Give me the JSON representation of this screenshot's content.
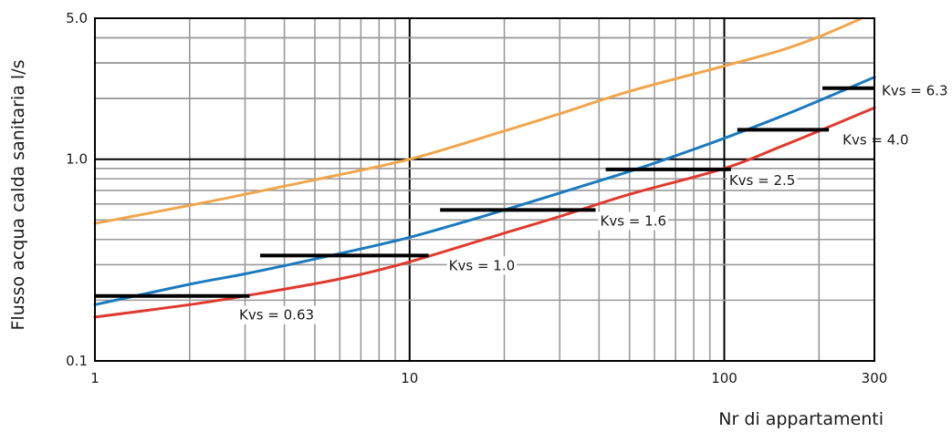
{
  "chart_data": {
    "type": "line",
    "title": "",
    "xlabel": "Nr di appartamenti",
    "ylabel": "Flusso acqua calda sanitaria l/s",
    "x_scale": "log",
    "y_scale": "log",
    "xlim": [
      1,
      300
    ],
    "ylim": [
      0.1,
      5.0
    ],
    "grid": true,
    "x_tick_labels": [
      "1",
      "10",
      "100",
      "300"
    ],
    "x_tick_values": [
      1,
      10,
      100,
      300
    ],
    "y_tick_labels": [
      "0.1",
      "1.0",
      "5.0"
    ],
    "y_tick_values": [
      0.1,
      1.0,
      5.0
    ],
    "series": [
      {
        "color": "#f0a64c",
        "x": [
          1,
          2,
          3,
          5,
          10,
          20,
          30,
          50,
          100,
          150,
          200,
          270
        ],
        "y": [
          0.48,
          0.59,
          0.67,
          0.79,
          1.0,
          1.38,
          1.68,
          2.17,
          2.9,
          3.45,
          4.05,
          4.95
        ]
      },
      {
        "color": "#1a7abf",
        "x": [
          1,
          2,
          3,
          5,
          10,
          20,
          30,
          50,
          70,
          100,
          150,
          200,
          300
        ],
        "y": [
          0.19,
          0.24,
          0.27,
          0.32,
          0.41,
          0.56,
          0.68,
          0.87,
          1.04,
          1.27,
          1.62,
          1.95,
          2.55
        ]
      },
      {
        "color": "#e03a2e",
        "x": [
          1,
          2,
          3,
          6,
          10,
          20,
          30,
          50,
          100,
          150,
          200,
          300
        ],
        "y": [
          0.165,
          0.19,
          0.21,
          0.255,
          0.31,
          0.43,
          0.52,
          0.67,
          0.9,
          1.15,
          1.38,
          1.8
        ]
      }
    ],
    "kvs_levels": [
      {
        "label": "Kvs = 0.63",
        "x_start": 1,
        "x_end": 3.1,
        "y": 0.21
      },
      {
        "label": "Kvs = 1.0",
        "x_start": 3.35,
        "x_end": 11.5,
        "y": 0.333
      },
      {
        "label": "Kvs = 1.6",
        "x_start": 12.5,
        "x_end": 39,
        "y": 0.56
      },
      {
        "label": "Kvs = 2.5",
        "x_start": 42,
        "x_end": 105,
        "y": 0.89
      },
      {
        "label": "Kvs = 4.0",
        "x_start": 110,
        "x_end": 215,
        "y": 1.4
      },
      {
        "label": "Kvs = 6.3",
        "x_start": 205,
        "x_end": 300,
        "y": 2.25
      }
    ]
  }
}
